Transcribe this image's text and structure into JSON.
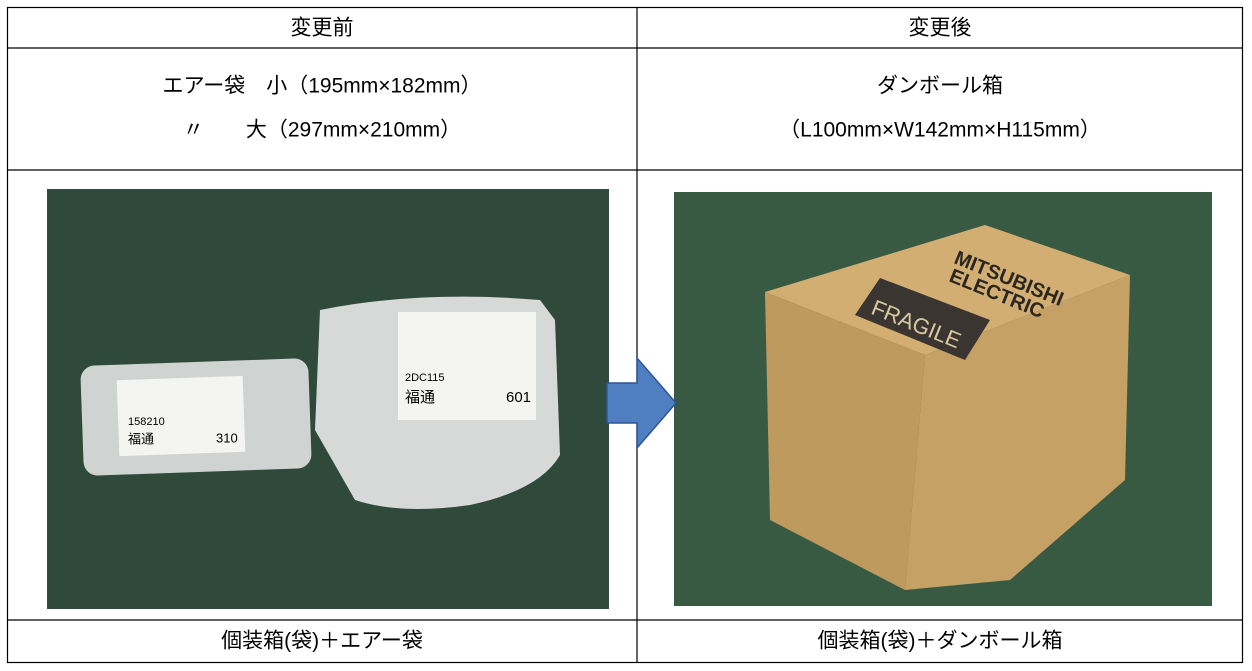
{
  "table": {
    "header": [
      "変更前",
      "変更後"
    ],
    "spec": [
      [
        "エアー袋　小（195mm×182mm）",
        "〃　　大（297mm×210mm）"
      ],
      [
        "ダンボール箱",
        "（L100mm×W142mm×H115mm）"
      ]
    ],
    "caption": [
      "個装箱(袋)＋エアー袋",
      "個装箱(袋)＋ダンボール箱"
    ]
  },
  "photos": {
    "left_labels": [
      "158210",
      "310",
      "2DC115",
      "601",
      "福通",
      "福通"
    ],
    "right_labels": [
      "MITSUBISHI",
      "ELECTRIC",
      "FRAGILE"
    ]
  }
}
